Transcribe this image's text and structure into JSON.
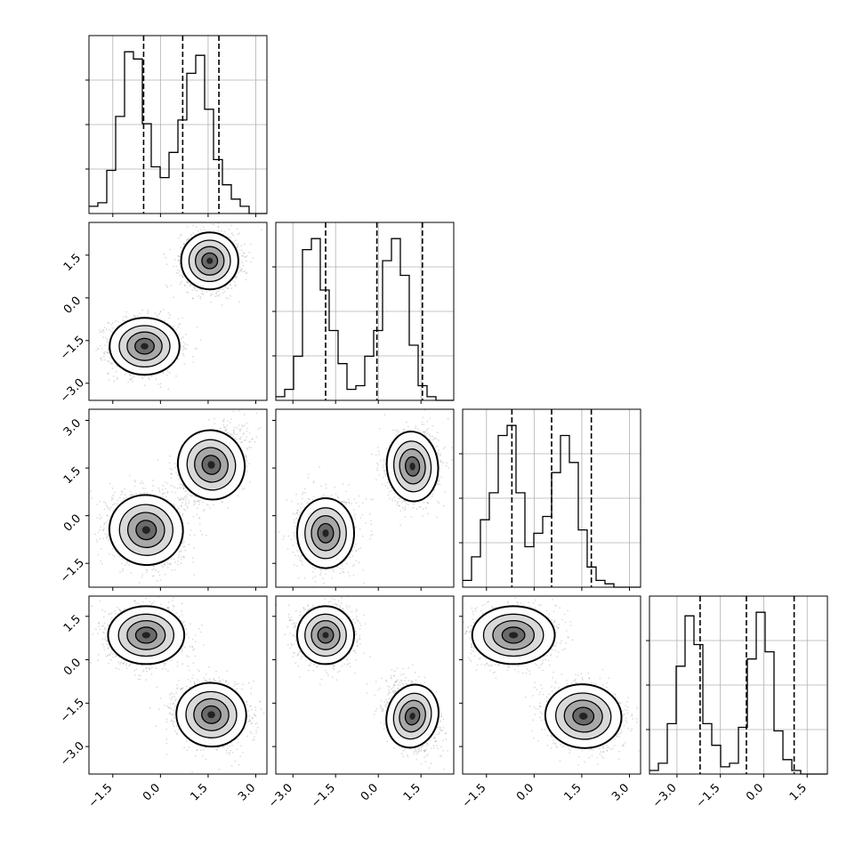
{
  "chart_data": {
    "type": "corner",
    "grid": true,
    "colors": {
      "line": "#000000",
      "grid": "#b0b0b0",
      "points": "#9a9a9a"
    },
    "parameters": [
      {
        "ticks": [
          -1.5,
          0.0,
          1.5,
          3.0
        ],
        "tick_labels": [
          "−1.5",
          "0.0",
          "1.5",
          "3.0"
        ],
        "lim": [
          -2.25,
          3.35
        ],
        "quantiles": [
          -0.53,
          0.7,
          1.84
        ]
      },
      {
        "ticks": [
          -3.0,
          -1.5,
          0.0,
          1.5
        ],
        "tick_labels": [
          "−3.0",
          "−1.5",
          "0.0",
          "1.5"
        ],
        "lim": [
          -3.6,
          2.65
        ],
        "quantiles": [
          -1.85,
          -0.05,
          1.55
        ]
      },
      {
        "ticks": [
          -1.5,
          0.0,
          1.5,
          3.0
        ],
        "tick_labels": [
          "−1.5",
          "0.0",
          "1.5",
          "3.0"
        ],
        "lim": [
          -2.25,
          3.35
        ],
        "quantiles": [
          -0.7,
          0.55,
          1.8
        ]
      },
      {
        "ticks": [
          -3.0,
          -1.5,
          0.0,
          1.5
        ],
        "tick_labels": [
          "−3.0",
          "−1.5",
          "0.0",
          "1.5"
        ],
        "lim": [
          -3.95,
          2.2
        ],
        "quantiles": [
          -2.2,
          -0.6,
          1.05
        ]
      }
    ],
    "histograms": [
      {
        "param": 0,
        "bins": 20,
        "counts": [
          2,
          3,
          12,
          27,
          45,
          43,
          25,
          13,
          10,
          17,
          26,
          39,
          44,
          29,
          15,
          8,
          4,
          2,
          0,
          0
        ]
      },
      {
        "param": 1,
        "bins": 20,
        "counts": [
          1,
          3,
          12,
          41,
          44,
          30,
          19,
          10,
          3,
          4,
          12,
          19,
          38,
          44,
          34,
          15,
          4,
          1,
          0,
          0
        ]
      },
      {
        "param": 2,
        "bins": 20,
        "counts": [
          2,
          9,
          20,
          28,
          45,
          48,
          28,
          12,
          16,
          21,
          34,
          45,
          37,
          17,
          6,
          2,
          1,
          0,
          0,
          0
        ]
      },
      {
        "param": 3,
        "bins": 20,
        "counts": [
          1,
          3,
          14,
          30,
          44,
          36,
          14,
          8,
          2,
          3,
          13,
          32,
          45,
          34,
          12,
          4,
          1,
          0,
          0,
          0
        ]
      }
    ],
    "panels_2d": [
      {
        "x": 0,
        "y": 1,
        "modes": [
          {
            "cx": -0.5,
            "cy": -1.7,
            "sx": 0.55,
            "sy": 0.5,
            "rho": 0.0
          },
          {
            "cx": 1.55,
            "cy": 1.3,
            "sx": 0.45,
            "sy": 0.5,
            "rho": 0.0
          }
        ]
      },
      {
        "x": 0,
        "y": 2,
        "modes": [
          {
            "cx": -0.45,
            "cy": -0.45,
            "sx": 0.58,
            "sy": 0.55,
            "rho": -0.2
          },
          {
            "cx": 1.6,
            "cy": 1.6,
            "sx": 0.52,
            "sy": 0.55,
            "rho": 0.5
          }
        ]
      },
      {
        "x": 1,
        "y": 2,
        "modes": [
          {
            "cx": -1.85,
            "cy": -0.55,
            "sx": 0.5,
            "sy": 0.55,
            "rho": 0.0
          },
          {
            "cx": 1.2,
            "cy": 1.55,
            "sx": 0.45,
            "sy": 0.55,
            "rho": 0.1
          }
        ]
      },
      {
        "x": 0,
        "y": 3,
        "modes": [
          {
            "cx": -0.45,
            "cy": 0.85,
            "sx": 0.6,
            "sy": 0.5,
            "rho": 0.0
          },
          {
            "cx": 1.6,
            "cy": -1.9,
            "sx": 0.55,
            "sy": 0.55,
            "rho": -0.1
          }
        ]
      },
      {
        "x": 1,
        "y": 3,
        "modes": [
          {
            "cx": -1.85,
            "cy": 0.85,
            "sx": 0.5,
            "sy": 0.5,
            "rho": 0.0
          },
          {
            "cx": 1.2,
            "cy": -1.95,
            "sx": 0.45,
            "sy": 0.55,
            "rho": -0.3
          }
        ]
      },
      {
        "x": 2,
        "y": 3,
        "modes": [
          {
            "cx": -0.65,
            "cy": 0.85,
            "sx": 0.65,
            "sy": 0.5,
            "rho": 0.0
          },
          {
            "cx": 1.55,
            "cy": -1.95,
            "sx": 0.6,
            "sy": 0.55,
            "rho": -0.1
          }
        ]
      }
    ]
  }
}
